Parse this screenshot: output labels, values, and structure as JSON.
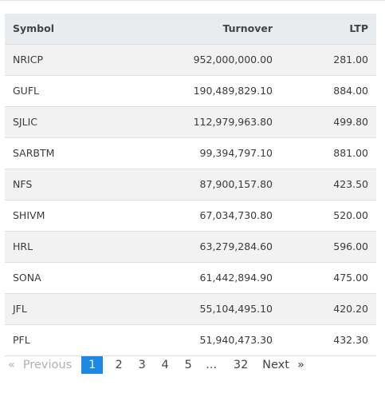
{
  "table": {
    "headers": {
      "symbol": "Symbol",
      "turnover": "Turnover",
      "ltp": "LTP"
    },
    "rows": [
      {
        "symbol": "NRICP",
        "turnover": "952,000,000.00",
        "ltp": "281.00"
      },
      {
        "symbol": "GUFL",
        "turnover": "190,489,829.10",
        "ltp": "884.00"
      },
      {
        "symbol": "SJLIC",
        "turnover": "112,979,963.80",
        "ltp": "499.80"
      },
      {
        "symbol": "SARBTM",
        "turnover": "99,394,797.10",
        "ltp": "881.00"
      },
      {
        "symbol": "NFS",
        "turnover": "87,900,157.80",
        "ltp": "423.50"
      },
      {
        "symbol": "SHIVM",
        "turnover": "67,034,730.80",
        "ltp": "520.00"
      },
      {
        "symbol": "HRL",
        "turnover": "63,279,284.60",
        "ltp": "596.00"
      },
      {
        "symbol": "SONA",
        "turnover": "61,442,894.90",
        "ltp": "475.00"
      },
      {
        "symbol": "JFL",
        "turnover": "55,104,495.10",
        "ltp": "420.20"
      },
      {
        "symbol": "PFL",
        "turnover": "51,940,473.30",
        "ltp": "432.30"
      }
    ]
  },
  "pagination": {
    "prev_arrow": "«",
    "prev_label": "Previous",
    "pages": [
      "1",
      "2",
      "3",
      "4",
      "5"
    ],
    "current_page": "1",
    "ellipsis": "...",
    "last_page": "32",
    "next_label": "Next",
    "next_arrow": "»",
    "active_color": "#1e88e5"
  }
}
